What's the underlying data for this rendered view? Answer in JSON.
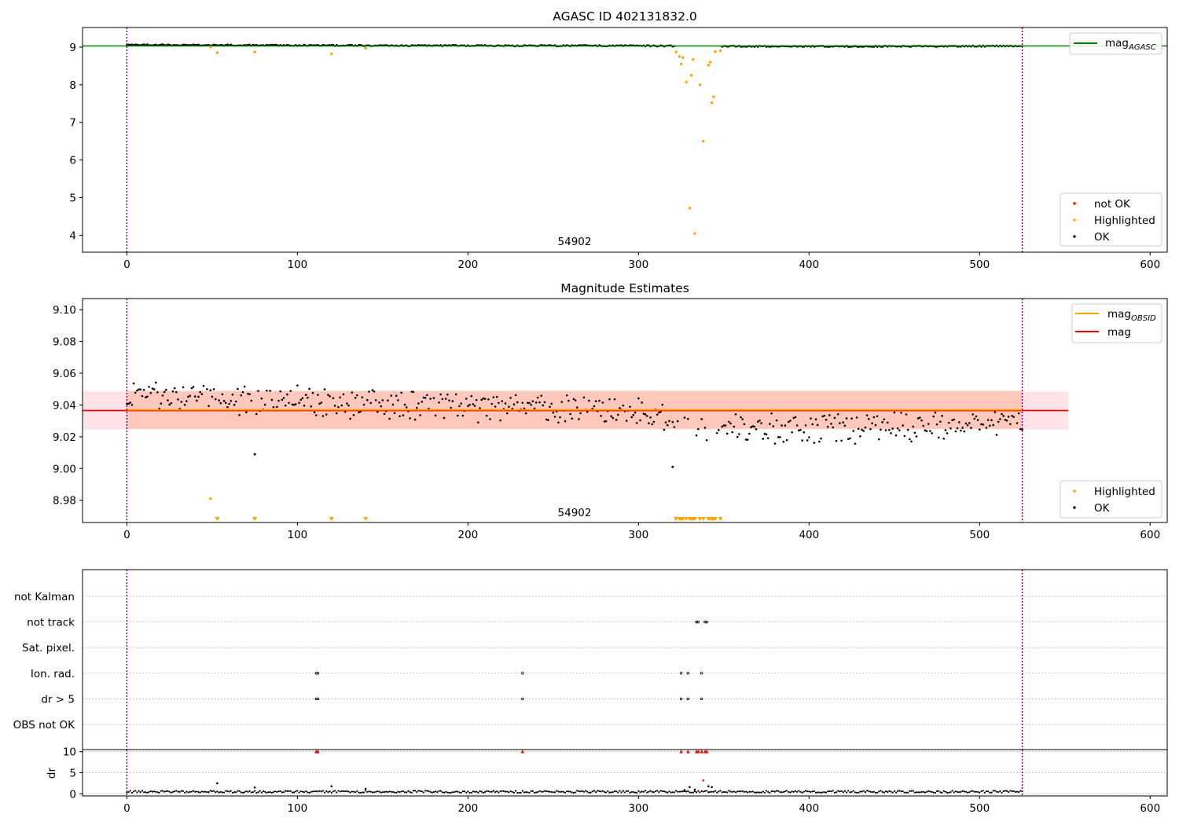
{
  "chart_data": [
    {
      "type": "scatter",
      "title": "AGASC ID 402131832.0",
      "xlim": [
        -26,
        610
      ],
      "ylim": [
        3.55,
        9.52
      ],
      "x_ticks": [
        0,
        100,
        200,
        300,
        400,
        500,
        600
      ],
      "y_ticks": [
        4,
        5,
        6,
        7,
        8,
        9
      ],
      "vlines": [
        0,
        525
      ],
      "obsid_label": {
        "text": "54902",
        "x": 262
      },
      "hline": {
        "name": "mag_AGASC",
        "label_main": "mag",
        "label_sub": "AGASC",
        "y": 9.03,
        "color": "#008000"
      },
      "legend_lines": [
        {
          "label_main": "mag",
          "label_sub": "AGASC",
          "color": "#008000"
        }
      ],
      "legend_points": [
        {
          "label": "not OK",
          "color": "#ff0000"
        },
        {
          "label": "Highlighted",
          "color": "#ffa500"
        },
        {
          "label": "OK",
          "color": "#000000"
        }
      ],
      "highlighted": [
        [
          49,
          9.0
        ],
        [
          53,
          8.85
        ],
        [
          75,
          8.87
        ],
        [
          120,
          8.82
        ],
        [
          140,
          8.97
        ],
        [
          322,
          8.87
        ],
        [
          324,
          8.75
        ],
        [
          325,
          8.55
        ],
        [
          326,
          8.72
        ],
        [
          328,
          8.07
        ],
        [
          330,
          4.72
        ],
        [
          331,
          8.25
        ],
        [
          332,
          8.67
        ],
        [
          333,
          4.05
        ],
        [
          336,
          8.0
        ],
        [
          338,
          6.5
        ],
        [
          341,
          8.52
        ],
        [
          342,
          8.6
        ],
        [
          343,
          7.52
        ],
        [
          344,
          7.68
        ],
        [
          345,
          8.88
        ],
        [
          348,
          8.9
        ]
      ],
      "ok_band": [
        [
          0,
          9.06
        ],
        [
          150,
          9.04
        ],
        [
          300,
          9.035
        ],
        [
          350,
          9.02
        ],
        [
          450,
          9.02
        ],
        [
          525,
          9.03
        ]
      ]
    },
    {
      "type": "scatter",
      "title": "Magnitude Estimates",
      "xlim": [
        -26,
        610
      ],
      "ylim": [
        8.966,
        9.107
      ],
      "x_ticks": [
        0,
        100,
        200,
        300,
        400,
        500,
        600
      ],
      "y_ticks": [
        8.98,
        9.0,
        9.02,
        9.04,
        9.06,
        9.08,
        9.1
      ],
      "y_tick_labels": [
        "8.98",
        "9.00",
        "9.02",
        "9.04",
        "9.06",
        "9.08",
        "9.10"
      ],
      "vlines": [
        0,
        525
      ],
      "obsid_label": {
        "text": "54902",
        "x": 262
      },
      "mag": {
        "y": 9.0365,
        "lo": 9.0245,
        "hi": 9.0485,
        "x_end": 552,
        "color": "#ff0000"
      },
      "mag_obsid": {
        "y": 9.037,
        "lo": 9.025,
        "hi": 9.049,
        "x_start": 0,
        "x_end": 525,
        "color": "#ffa500"
      },
      "legend_lines": [
        {
          "label_main": "mag",
          "label_sub": "OBSID",
          "color": "#ffa500"
        },
        {
          "label_main": "mag",
          "label_sub": "",
          "color": "#ff0000"
        }
      ],
      "legend_points": [
        {
          "label": "Highlighted",
          "color": "#ffa500"
        },
        {
          "label": "OK",
          "color": "#000000"
        }
      ],
      "highlighted": [
        [
          49,
          8.981
        ]
      ],
      "highlighted_below": [
        53,
        75,
        120,
        140,
        322,
        324,
        325,
        326,
        328,
        330,
        331,
        332,
        333,
        336,
        338,
        341,
        342,
        343,
        344,
        345,
        348
      ],
      "ok_outliers": [
        [
          75,
          9.009
        ],
        [
          320,
          9.001
        ]
      ],
      "ok_trend": [
        [
          0,
          9.046,
          0.008
        ],
        [
          150,
          9.04,
          0.008
        ],
        [
          300,
          9.036,
          0.008
        ],
        [
          345,
          9.025,
          0.008
        ],
        [
          450,
          9.025,
          0.008
        ],
        [
          525,
          9.03,
          0.006
        ]
      ]
    },
    {
      "type": "scatter",
      "xlim": [
        -26,
        610
      ],
      "x_ticks": [
        0,
        100,
        200,
        300,
        400,
        500,
        600
      ],
      "vlines": [
        0,
        525
      ],
      "flag_rows": [
        "not Kalman",
        "not track",
        "Sat. pixel.",
        "Ion. rad.",
        "dr > 5",
        "OBS not OK"
      ],
      "flags": {
        "not track": [
          334,
          335,
          339,
          340
        ],
        "Ion. rad.": [
          111,
          112,
          232,
          325,
          329,
          337
        ],
        "dr > 5": [
          111,
          112,
          232,
          325,
          329,
          337
        ]
      },
      "dr": {
        "ylabel": "dr",
        "ylim": [
          -0.5,
          10.5
        ],
        "y_ticks": [
          0,
          5,
          10
        ],
        "clipped_red": [
          111,
          112,
          232,
          325,
          329,
          334,
          335,
          337,
          339,
          340
        ],
        "spikes": [
          [
            53,
            2.5
          ],
          [
            75,
            1.5
          ],
          [
            120,
            1.8
          ],
          [
            140,
            1.2
          ],
          [
            327,
            0.9
          ],
          [
            330,
            1.6
          ],
          [
            333,
            1.0
          ],
          [
            338,
            3.2
          ],
          [
            341,
            1.8
          ],
          [
            343,
            1.6
          ]
        ]
      }
    }
  ]
}
